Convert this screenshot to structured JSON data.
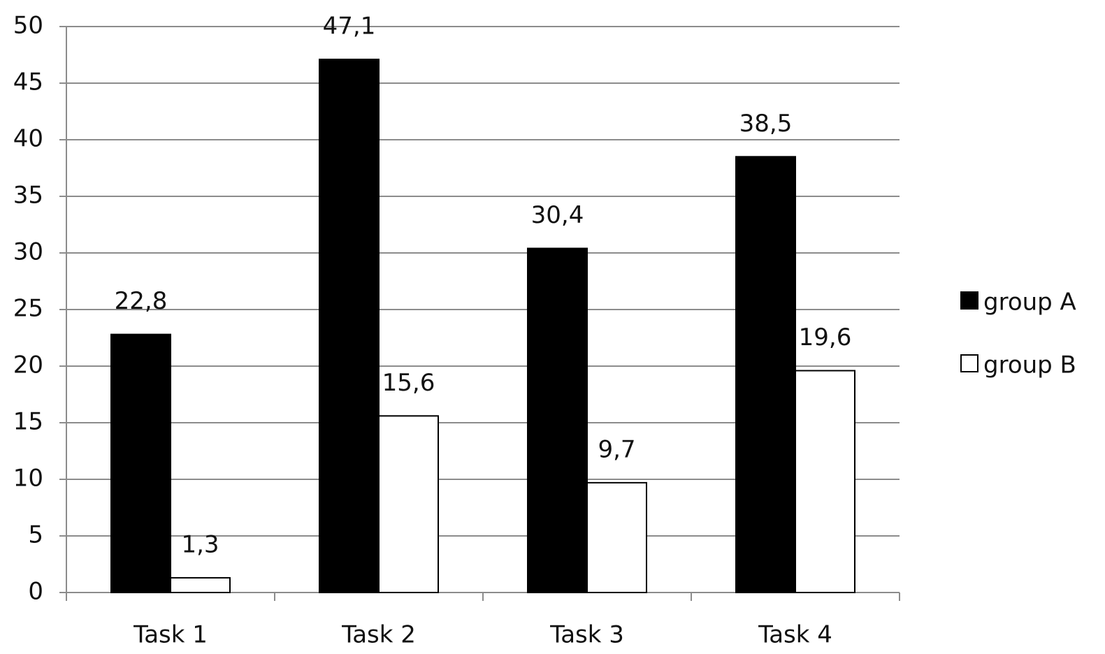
{
  "chart_data": {
    "type": "bar",
    "categories": [
      "Task 1",
      "Task 2",
      "Task 3",
      "Task 4"
    ],
    "series": [
      {
        "name": "group A",
        "color": "#000000",
        "values": [
          22.8,
          47.1,
          30.4,
          38.5
        ],
        "value_labels": [
          "22,8",
          "47,1",
          "30,4",
          "38,5"
        ]
      },
      {
        "name": "group B",
        "color": "#ffffff",
        "values": [
          1.3,
          15.6,
          9.7,
          19.6
        ],
        "value_labels": [
          "1,3",
          "15,6",
          "9,7",
          "19,6"
        ]
      }
    ],
    "ylim": [
      0,
      50
    ],
    "yticks": [
      0,
      5,
      10,
      15,
      20,
      25,
      30,
      35,
      40,
      45,
      50
    ],
    "grid": true,
    "legend": "right"
  }
}
